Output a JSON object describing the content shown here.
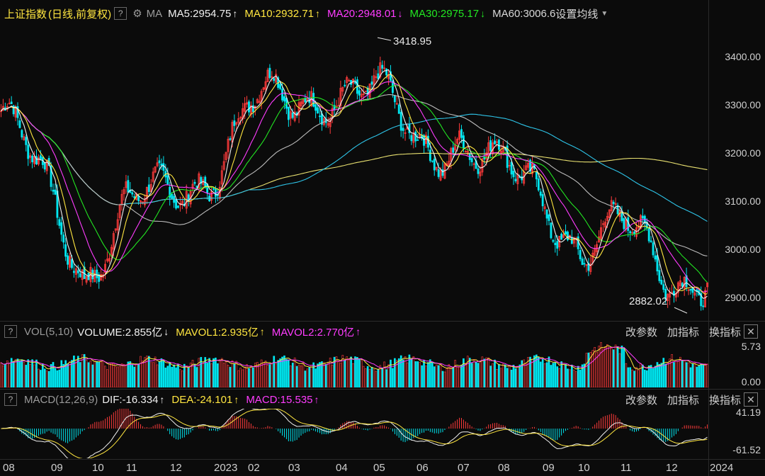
{
  "header": {
    "title": "上证指数",
    "subtitle": "(日线,前复权)",
    "help": "?",
    "ma_label": "MA",
    "ma5": "MA5:2954.75",
    "ma10": "MA10:2932.71",
    "ma20": "MA20:2948.01",
    "ma30": "MA30:2975.17",
    "ma60": "MA60:3006.6",
    "settings": "设置均线",
    "arrows": {
      "ma5": "↑",
      "ma10": "↑",
      "ma20": "↓",
      "ma30": "↓"
    }
  },
  "vol_header": {
    "help": "?",
    "label": "VOL(5,10)",
    "volume": "VOLUME:2.855亿",
    "mavol1": "MAVOL1:2.935亿",
    "mavol2": "MAVOL2:2.770亿",
    "arrows": {
      "volume": "↓",
      "mavol1": "↑",
      "mavol2": "↑"
    },
    "links": [
      "改参数",
      "加指标",
      "换指标"
    ]
  },
  "macd_header": {
    "help": "?",
    "label": "MACD(12,26,9)",
    "dif": "DIF:-16.334",
    "dea": "DEA:-24.101",
    "macd": "MACD:15.535",
    "arrows": {
      "dif": "↑",
      "dea": "↑",
      "macd": "↑"
    },
    "links": [
      "改参数",
      "加指标",
      "换指标"
    ]
  },
  "price_axis": [
    "3400.00",
    "3300.00",
    "3200.00",
    "3100.00",
    "3000.00",
    "2900.00"
  ],
  "vol_axis": [
    "5.73",
    "0.00"
  ],
  "macd_axis": [
    "41.19",
    "-61.52"
  ],
  "x_axis": [
    "08",
    "09",
    "10",
    "11",
    "12",
    "2023",
    "02",
    "03",
    "04",
    "05",
    "06",
    "07",
    "08",
    "09",
    "10",
    "11",
    "12",
    "2024"
  ],
  "annotations": {
    "high": "3418.95",
    "low": "2882.02"
  },
  "colors": {
    "up": "#ff3b3b",
    "down": "#00e6f0",
    "ma5": "#f0f0f0",
    "ma10": "#ffe640",
    "ma20": "#ff3cff",
    "ma30": "#22e622",
    "ma60": "#bbbbbb",
    "ma120": "#2ec4e8",
    "ma250": "#e8e070"
  },
  "chart_data": {
    "type": "candlestick",
    "title": "上证指数",
    "ylim": [
      2860,
      3440
    ],
    "marked_high": 3418.95,
    "marked_low": 2882.02,
    "anchor_closes": [
      [
        "08",
        3270
      ],
      [
        "09",
        3120
      ],
      [
        "10",
        2960
      ],
      [
        "11",
        3080
      ],
      [
        "12",
        3090
      ],
      [
        "2023",
        3160
      ],
      [
        "02",
        3280
      ],
      [
        "03",
        3270
      ],
      [
        "04",
        3330
      ],
      [
        "05",
        3300
      ],
      [
        "06",
        3200
      ],
      [
        "07",
        3230
      ],
      [
        "08",
        3140
      ],
      [
        "09",
        3110
      ],
      [
        "10",
        3010
      ],
      [
        "11",
        3030
      ],
      [
        "12",
        2960
      ],
      [
        "2024",
        2955
      ]
    ],
    "ma_last": {
      "MA5": 2954.75,
      "MA10": 2932.71,
      "MA20": 2948.01,
      "MA30": 2975.17,
      "MA60": 3006.6
    },
    "volume_last": 2.855,
    "volume_ylim": [
      0,
      5.73
    ],
    "macd": {
      "DIF": -16.334,
      "DEA": -24.101,
      "MACD": 15.535,
      "ylim": [
        -61.52,
        41.19
      ]
    }
  }
}
